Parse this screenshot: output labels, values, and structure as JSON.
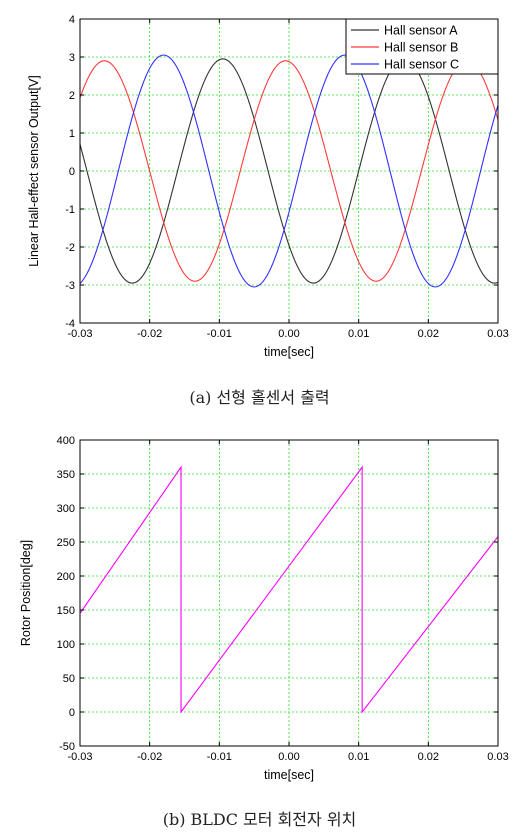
{
  "chart_data": [
    {
      "type": "line",
      "title": "",
      "xlabel": "time[sec]",
      "ylabel": "Linear Hall-effect sensor Output[V]",
      "xlim": [
        -0.03,
        0.03
      ],
      "ylim": [
        -4,
        4
      ],
      "xticks": [
        -0.03,
        -0.02,
        -0.01,
        0.0,
        0.01,
        0.02,
        0.03
      ],
      "xtick_labels": [
        "-0.03",
        "-0.02",
        "-0.01",
        "0.00",
        "0.01",
        "0.02",
        "0.03"
      ],
      "yticks": [
        -4,
        -3,
        -2,
        -1,
        0,
        1,
        2,
        3,
        4
      ],
      "ytick_labels": [
        "-4",
        "-3",
        "-2",
        "-1",
        "0",
        "1",
        "2",
        "3",
        "4"
      ],
      "grid": true,
      "legend": "top-right",
      "series": [
        {
          "name": "Hall sensor A",
          "color": "#333333",
          "amplitude": 2.95,
          "period": 0.026,
          "peak_time": -0.0095
        },
        {
          "name": "Hall sensor B",
          "color": "#ff3b3b",
          "amplitude": 2.9,
          "period": 0.026,
          "peak_time": -0.0265
        },
        {
          "name": "Hall sensor C",
          "color": "#3030ff",
          "amplitude": 3.05,
          "period": 0.026,
          "peak_time": -0.018
        }
      ]
    },
    {
      "type": "line",
      "title": "",
      "xlabel": "time[sec]",
      "ylabel": "Rotor Position[deg]",
      "xlim": [
        -0.03,
        0.03
      ],
      "ylim": [
        -50,
        400
      ],
      "xticks": [
        -0.03,
        -0.02,
        -0.01,
        0.0,
        0.01,
        0.02,
        0.03
      ],
      "xtick_labels": [
        "-0.03",
        "-0.02",
        "-0.01",
        "0.00",
        "0.01",
        "0.02",
        "0.03"
      ],
      "yticks": [
        -50,
        0,
        50,
        100,
        150,
        200,
        250,
        300,
        350,
        400
      ],
      "ytick_labels": [
        "-50",
        "0",
        "50",
        "100",
        "150",
        "200",
        "250",
        "300",
        "350",
        "400"
      ],
      "grid": true,
      "series": [
        {
          "color": "#ff00ff",
          "x": [
            -0.03,
            -0.0155,
            -0.0155,
            0.0105,
            0.0105,
            0.03
          ],
          "y": [
            145,
            360,
            0,
            360,
            0,
            258
          ]
        }
      ]
    }
  ],
  "captions": {
    "a": "(a) 선형 홀센서 출력",
    "b": "(b) BLDC 모터 회전자 위치"
  }
}
